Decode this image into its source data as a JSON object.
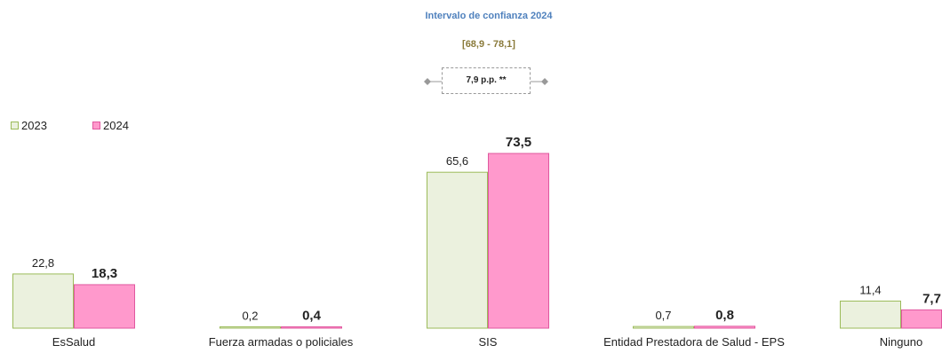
{
  "chart_data": {
    "type": "bar",
    "categories": [
      "EsSalud",
      "Fuerza armadas o policiales",
      "SIS",
      "Entidad Prestadora de Salud - EPS",
      "Ninguno"
    ],
    "series": [
      {
        "name": "2023",
        "values": [
          22.8,
          0.2,
          65.6,
          0.7,
          11.4
        ],
        "labels": [
          "22,8",
          "0,2",
          "65,6",
          "0,7",
          "11,4"
        ],
        "color": "#ebf1de",
        "border": "#9bbb59"
      },
      {
        "name": "2024",
        "values": [
          18.3,
          0.4,
          73.5,
          0.8,
          7.7
        ],
        "labels": [
          "18,3",
          "0,4",
          "73,5",
          "0,8",
          "7,7"
        ],
        "color": "#ff99cc",
        "border": "#e0589f"
      }
    ],
    "ylim": [
      0,
      80
    ],
    "legend_position": "top-left",
    "grid": false
  },
  "annotation": {
    "title": "Intervalo de confianza 2024",
    "range": "[68,9 - 78,1]",
    "difference": "7,9 p.p. **"
  }
}
